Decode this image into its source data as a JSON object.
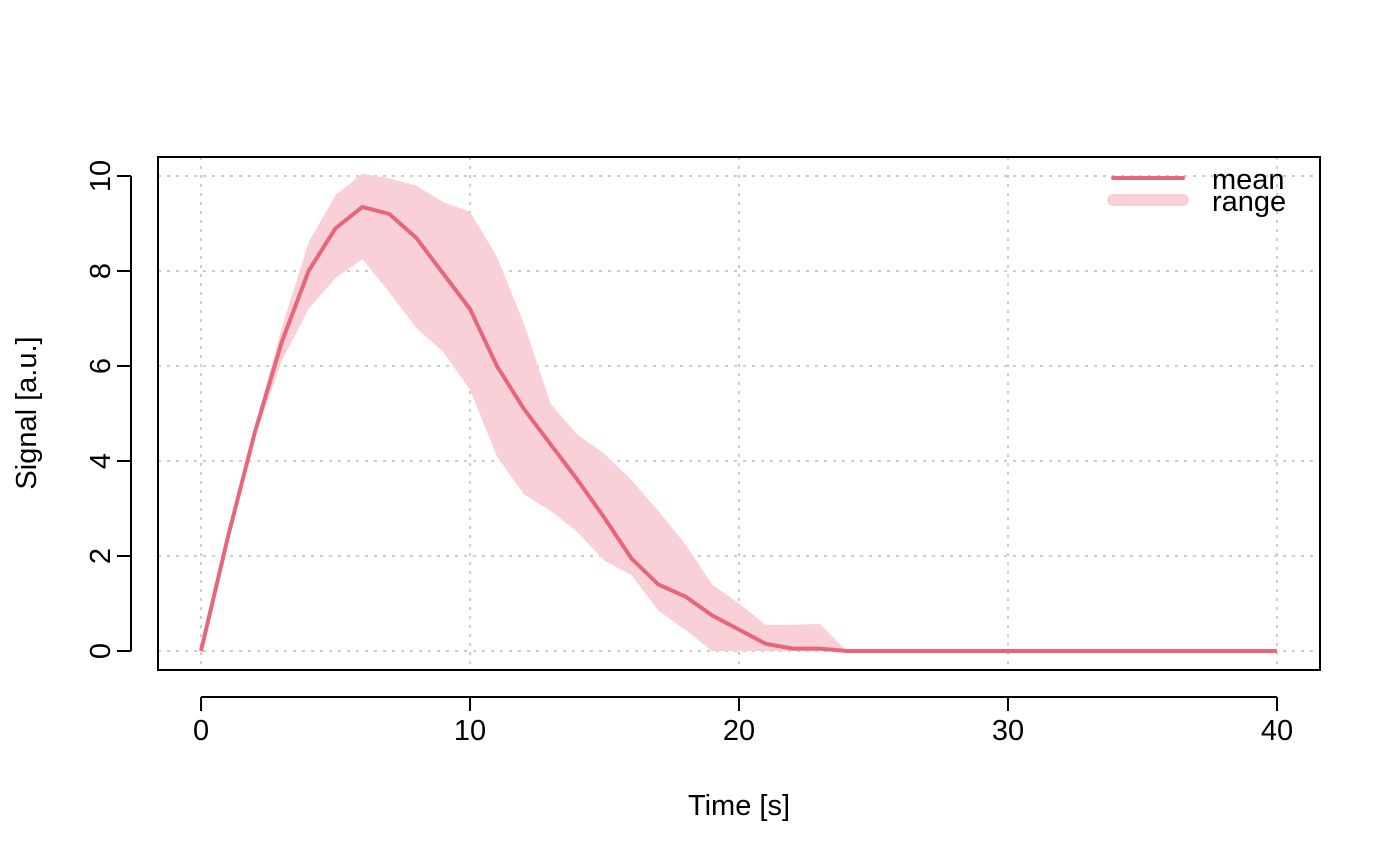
{
  "chart_data": {
    "type": "line",
    "xlabel": "Time [s]",
    "ylabel": "Signal [a.u.]",
    "xlim": [
      -1.6,
      41.6
    ],
    "ylim": [
      -0.4,
      10.4
    ],
    "xticks": [
      0,
      10,
      20,
      30,
      40
    ],
    "yticks": [
      0,
      2,
      4,
      6,
      8,
      10
    ],
    "grid": true,
    "legend_position": "top-right",
    "colors": {
      "mean": "#e8667a",
      "range": "#f9d0d8"
    },
    "series": [
      {
        "name": "mean",
        "kind": "line",
        "x": [
          0,
          1,
          2,
          3,
          4,
          5,
          6,
          7,
          8,
          9,
          10,
          11,
          12,
          13,
          14,
          15,
          16,
          17,
          18,
          19,
          20,
          21,
          22,
          23,
          24,
          25,
          26,
          27,
          28,
          29,
          30,
          31,
          32,
          33,
          34,
          35,
          36,
          37,
          38,
          39,
          40
        ],
        "values": [
          0,
          2.4,
          4.6,
          6.5,
          8.0,
          8.9,
          9.35,
          9.2,
          8.7,
          7.95,
          7.2,
          6.0,
          5.1,
          4.35,
          3.6,
          2.8,
          1.95,
          1.4,
          1.15,
          0.75,
          0.45,
          0.15,
          0.05,
          0.05,
          0,
          0,
          0,
          0,
          0,
          0,
          0,
          0,
          0,
          0,
          0,
          0,
          0,
          0,
          0,
          0,
          0
        ]
      },
      {
        "name": "range",
        "kind": "band",
        "x": [
          0,
          1,
          2,
          3,
          4,
          5,
          6,
          7,
          8,
          9,
          10,
          11,
          12,
          13,
          14,
          15,
          16,
          17,
          18,
          19,
          20,
          21,
          22,
          23,
          24,
          25,
          26,
          27,
          28,
          29,
          30,
          31,
          32,
          33,
          34,
          35,
          36,
          37,
          38,
          39,
          40
        ],
        "upper": [
          0,
          2.4,
          4.7,
          6.8,
          8.6,
          9.6,
          10.05,
          9.95,
          9.8,
          9.45,
          9.25,
          8.3,
          6.9,
          5.2,
          4.55,
          4.15,
          3.6,
          2.95,
          2.25,
          1.4,
          1.0,
          0.55,
          0.55,
          0.57,
          0,
          0,
          0,
          0,
          0,
          0,
          0,
          0,
          0,
          0,
          0,
          0,
          0,
          0,
          0,
          0,
          0
        ],
        "lower": [
          0,
          2.4,
          4.5,
          6.1,
          7.2,
          7.85,
          8.25,
          7.55,
          6.8,
          6.3,
          5.5,
          4.1,
          3.3,
          2.95,
          2.5,
          1.9,
          1.6,
          0.85,
          0.45,
          0.0,
          0.0,
          0.0,
          0.0,
          0.0,
          0,
          0,
          0,
          0,
          0,
          0,
          0,
          0,
          0,
          0,
          0,
          0,
          0,
          0,
          0,
          0,
          0
        ]
      }
    ]
  }
}
